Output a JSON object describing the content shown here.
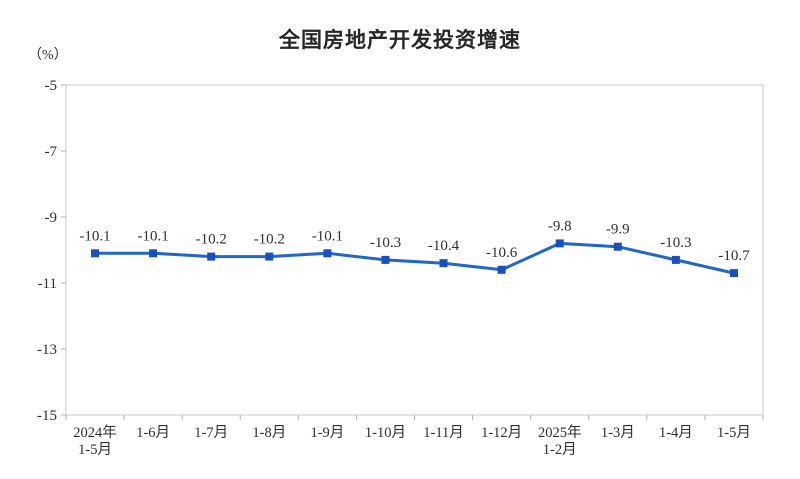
{
  "chart": {
    "title": "全国房地产开发投资增速",
    "unit_label": "（%）"
  },
  "chart_data": {
    "type": "line",
    "title": "全国房地产开发投资增速",
    "ylabel": "（%）",
    "xlabel": "",
    "categories": [
      "2024年\n1-5月",
      "1-6月",
      "1-7月",
      "1-8月",
      "1-9月",
      "1-10月",
      "1-11月",
      "1-12月",
      "2025年\n1-2月",
      "1-3月",
      "1-4月",
      "1-5月"
    ],
    "values": [
      -10.1,
      -10.1,
      -10.2,
      -10.2,
      -10.1,
      -10.3,
      -10.4,
      -10.6,
      -9.8,
      -9.9,
      -10.3,
      -10.7
    ],
    "value_labels": [
      "-10.1",
      "-10.1",
      "-10.2",
      "-10.2",
      "-10.1",
      "-10.3",
      "-10.4",
      "-10.6",
      "-9.8",
      "-9.9",
      "-10.3",
      "-10.7"
    ],
    "ylim": [
      -15,
      -5
    ],
    "yticks": [
      -5,
      -7,
      -9,
      -11,
      -13,
      -15
    ],
    "grid": false,
    "legend_position": "none",
    "colors": {
      "line": "#2167c9",
      "marker": "#1a50ba",
      "plot_border": "#c9c9c9",
      "tick": "#b3b3b3",
      "axis_text": "#2e2e3a",
      "data_label_text": "#2e2e3a",
      "title_text": "#262626"
    }
  }
}
